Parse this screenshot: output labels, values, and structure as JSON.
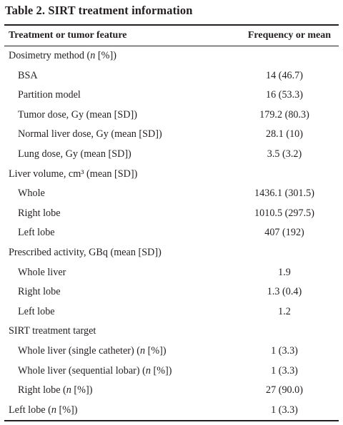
{
  "table": {
    "title": "Table 2. SIRT treatment information",
    "col_feature": "Treatment or tumor feature",
    "col_value": "Frequency or mean",
    "rows": [
      {
        "label": "Dosimetry method (n [%])",
        "value": "",
        "level": 0
      },
      {
        "label": "BSA",
        "value": "14 (46.7)",
        "level": 1
      },
      {
        "label": "Partition model",
        "value": "16 (53.3)",
        "level": 1
      },
      {
        "label": "Tumor dose, Gy (mean [SD])",
        "value": "179.2 (80.3)",
        "level": 1
      },
      {
        "label": "Normal liver dose, Gy (mean [SD])",
        "value": "28.1 (10)",
        "level": 1
      },
      {
        "label": "Lung dose, Gy (mean [SD])",
        "value": "3.5 (3.2)",
        "level": 1
      },
      {
        "label": "Liver volume, cm³ (mean [SD])",
        "value": "",
        "level": 0
      },
      {
        "label": "Whole",
        "value": "1436.1 (301.5)",
        "level": 1
      },
      {
        "label": "Right lobe",
        "value": "1010.5 (297.5)",
        "level": 1
      },
      {
        "label": "Left lobe",
        "value": "407 (192)",
        "level": 1
      },
      {
        "label": "Prescribed activity, GBq (mean [SD])",
        "value": "",
        "level": 0
      },
      {
        "label": "Whole liver",
        "value": "1.9",
        "level": 1
      },
      {
        "label": "Right lobe",
        "value": "1.3 (0.4)",
        "level": 1
      },
      {
        "label": "Left lobe",
        "value": "1.2",
        "level": 1
      },
      {
        "label": "SIRT treatment target",
        "value": "",
        "level": 0
      },
      {
        "label": "Whole liver (single catheter) (n [%])",
        "value": "1 (3.3)",
        "level": 1
      },
      {
        "label": "Whole liver (sequential lobar) (n [%])",
        "value": "1 (3.3)",
        "level": 1
      },
      {
        "label": "Right lobe (n [%])",
        "value": "27 (90.0)",
        "level": 1
      },
      {
        "label": "Left lobe (n [%])",
        "value": "1 (3.3)",
        "level": 0
      }
    ]
  }
}
